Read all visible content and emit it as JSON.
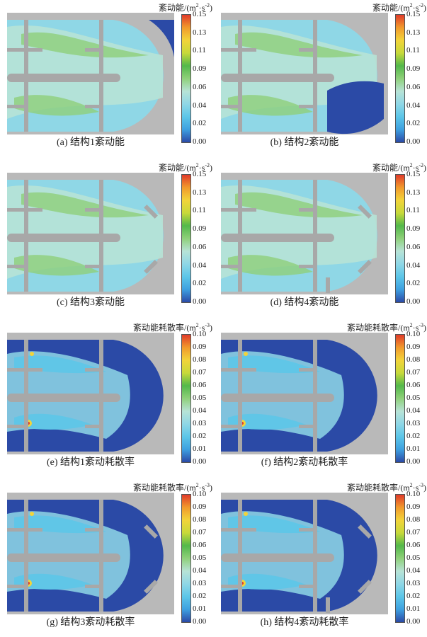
{
  "colorbar_colors": [
    "#2b4aa6",
    "#3ea0e0",
    "#5cc6e8",
    "#8fd7e6",
    "#b7e3d6",
    "#8fd07a",
    "#53b84a",
    "#c7d93a",
    "#f2d43a",
    "#f19a2c",
    "#e03a2a"
  ],
  "panels": [
    {
      "title": "紊动能/(m",
      "title_sup1": "2",
      "title_mid": "·s",
      "title_sup2": "-2",
      "title_end": ")",
      "caption": "(a) 结构1紊动能",
      "ticks": [
        "0.15",
        "0.13",
        "0.11",
        "0.09",
        "0.06",
        "0.04",
        "0.02",
        "0.00"
      ]
    },
    {
      "title": "紊动能/(m",
      "title_sup1": "2",
      "title_mid": "·s",
      "title_sup2": "-2",
      "title_end": ")",
      "caption": "(b) 结构2紊动能",
      "ticks": [
        "0.15",
        "0.13",
        "0.11",
        "0.09",
        "0.06",
        "0.04",
        "0.02",
        "0.00"
      ]
    },
    {
      "title": "紊动能/(m",
      "title_sup1": "2",
      "title_mid": "·s",
      "title_sup2": "-2",
      "title_end": ")",
      "caption": "(c) 结构3紊动能",
      "ticks": [
        "0.15",
        "0.13",
        "0.11",
        "0.09",
        "0.06",
        "0.04",
        "0.02",
        "0.00"
      ]
    },
    {
      "title": "紊动能/(m",
      "title_sup1": "2",
      "title_mid": "·s",
      "title_sup2": "-2",
      "title_end": ")",
      "caption": "(d) 结构4紊动能",
      "ticks": [
        "0.15",
        "0.13",
        "0.11",
        "0.09",
        "0.06",
        "0.04",
        "0.02",
        "0.00"
      ]
    },
    {
      "title": "紊动能耗散率/(m",
      "title_sup1": "2",
      "title_mid": "·s",
      "title_sup2": "-3",
      "title_end": ")",
      "caption": "(e) 结构1紊动耗散率",
      "ticks": [
        "0.10",
        "0.09",
        "0.08",
        "0.07",
        "0.06",
        "0.05",
        "0.04",
        "0.03",
        "0.02",
        "0.01",
        "0.00"
      ]
    },
    {
      "title": "紊动能耗散率/(m",
      "title_sup1": "2",
      "title_mid": "·s",
      "title_sup2": "-3",
      "title_end": ")",
      "caption": "(f) 结构2紊动耗散率",
      "ticks": [
        "0.10",
        "0.09",
        "0.08",
        "0.07",
        "0.06",
        "0.05",
        "0.04",
        "0.03",
        "0.02",
        "0.01",
        "0.00"
      ]
    },
    {
      "title": "紊动能耗散率/(m",
      "title_sup1": "2",
      "title_mid": "·s",
      "title_sup2": "-3",
      "title_end": ")",
      "caption": "(g) 结构3紊动耗散率",
      "ticks": [
        "0.10",
        "0.09",
        "0.08",
        "0.07",
        "0.06",
        "0.05",
        "0.04",
        "0.03",
        "0.02",
        "0.01",
        "0.00"
      ]
    },
    {
      "title": "紊动能耗散率/(m",
      "title_sup1": "2",
      "title_mid": "·s",
      "title_sup2": "-3",
      "title_end": ")",
      "caption": "(h) 结构4紊动耗散率",
      "ticks": [
        "0.10",
        "0.09",
        "0.08",
        "0.07",
        "0.06",
        "0.05",
        "0.04",
        "0.03",
        "0.02",
        "0.01",
        "0.00"
      ]
    }
  ]
}
